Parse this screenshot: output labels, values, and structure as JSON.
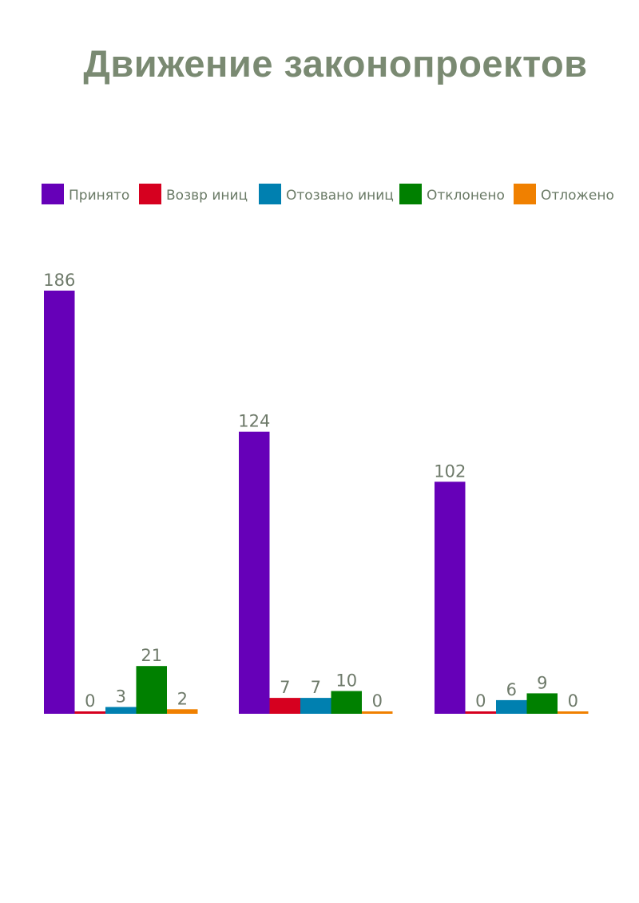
{
  "chart_data": {
    "type": "bar",
    "title": "Движение законопроектов",
    "categories": [
      "",
      "",
      ""
    ],
    "series": [
      {
        "name": "Принято",
        "color": "#6600b8",
        "values": [
          186,
          124,
          102
        ]
      },
      {
        "name": "Возвр иниц",
        "color": "#d6001f",
        "values": [
          0,
          7,
          0
        ]
      },
      {
        "name": "Отозвано иниц",
        "color": "#0080b0",
        "values": [
          3,
          7,
          6
        ]
      },
      {
        "name": "Отклонено",
        "color": "#008000",
        "values": [
          21,
          10,
          9
        ]
      },
      {
        "name": "Отложено",
        "color": "#f08000",
        "values": [
          2,
          0,
          0
        ]
      }
    ],
    "legend_position": "top",
    "grid": false,
    "ylim": [
      0,
      186
    ]
  }
}
